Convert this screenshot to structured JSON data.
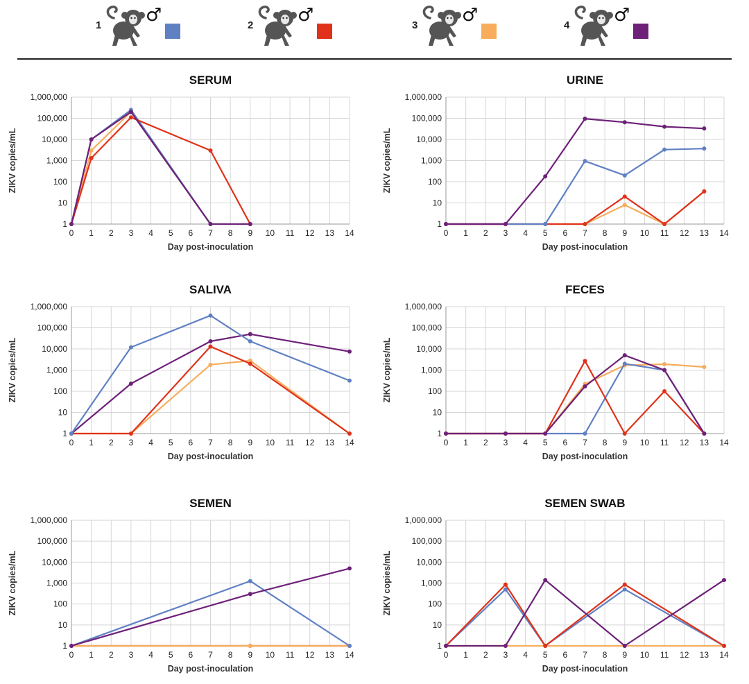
{
  "colors": {
    "subject1": "#6080C4",
    "subject2": "#E0321A",
    "subject3": "#F7AD5C",
    "subject4": "#6E2179",
    "grid": "#d6d6d6",
    "monkey": "#555555"
  },
  "legend": [
    {
      "number": "1",
      "sex_symbol": "♂",
      "color": "#6080C4",
      "icon": "monkey-icon"
    },
    {
      "number": "2",
      "sex_symbol": "♂",
      "color": "#E0321A",
      "icon": "monkey-icon"
    },
    {
      "number": "3",
      "sex_symbol": "♂",
      "color": "#F7AD5C",
      "icon": "monkey-icon"
    },
    {
      "number": "4",
      "sex_symbol": "♂",
      "color": "#6E2179",
      "icon": "monkey-icon"
    }
  ],
  "chart_data": [
    {
      "id": "serum",
      "type": "line",
      "title": "SERUM",
      "xlabel": "Day post-inoculation",
      "ylabel": "ZIKV copies/mL",
      "xlim": [
        0,
        14
      ],
      "ylim": [
        1,
        1000000
      ],
      "yscale": "log",
      "grid": true,
      "xticks": [
        "0",
        "1",
        "2",
        "3",
        "4",
        "5",
        "6",
        "7",
        "8",
        "9",
        "10",
        "11",
        "12",
        "13",
        "14"
      ],
      "yticks": [
        "1",
        "10",
        "100",
        "1,000",
        "10,000",
        "100,000",
        "1,000,000"
      ],
      "series": [
        {
          "color": "#F7AD5C",
          "points": [
            [
              0,
              1
            ],
            [
              1,
              3000
            ],
            [
              3,
              200000
            ],
            [
              7,
              1
            ]
          ]
        },
        {
          "color": "#6080C4",
          "points": [
            [
              0,
              1
            ],
            [
              1,
              10000
            ],
            [
              3,
              250000
            ],
            [
              7,
              1
            ]
          ]
        },
        {
          "color": "#E0321A",
          "points": [
            [
              0,
              1
            ],
            [
              1,
              1300
            ],
            [
              3,
              110000
            ],
            [
              7,
              3000
            ],
            [
              9,
              1
            ]
          ]
        },
        {
          "color": "#6E2179",
          "points": [
            [
              0,
              1
            ],
            [
              1,
              10000
            ],
            [
              3,
              200000
            ],
            [
              7,
              1
            ],
            [
              9,
              1
            ]
          ]
        }
      ]
    },
    {
      "id": "urine",
      "type": "line",
      "title": "URINE",
      "xlabel": "Day post-inoculation",
      "ylabel": "ZIKV copies/mL",
      "xlim": [
        0,
        14
      ],
      "ylim": [
        1,
        1000000
      ],
      "yscale": "log",
      "grid": true,
      "xticks": [
        "0",
        "1",
        "2",
        "3",
        "4",
        "5",
        "6",
        "7",
        "8",
        "9",
        "10",
        "11",
        "12",
        "13",
        "14"
      ],
      "yticks": [
        "1",
        "10",
        "100",
        "1,000",
        "10,000",
        "100,000",
        "1,000,000"
      ],
      "series": [
        {
          "color": "#F7AD5C",
          "points": [
            [
              0,
              1
            ],
            [
              3,
              1
            ],
            [
              5,
              1
            ],
            [
              7,
              1
            ],
            [
              9,
              8
            ],
            [
              11,
              1
            ],
            [
              13,
              35
            ]
          ]
        },
        {
          "color": "#E0321A",
          "points": [
            [
              0,
              1
            ],
            [
              3,
              1
            ],
            [
              5,
              1
            ],
            [
              7,
              1
            ],
            [
              9,
              20
            ],
            [
              11,
              1
            ],
            [
              13,
              35
            ]
          ]
        },
        {
          "color": "#6080C4",
          "points": [
            [
              0,
              1
            ],
            [
              3,
              1
            ],
            [
              5,
              1
            ],
            [
              7,
              950
            ],
            [
              9,
              200
            ],
            [
              11,
              3300
            ],
            [
              13,
              3700
            ]
          ]
        },
        {
          "color": "#6E2179",
          "points": [
            [
              0,
              1
            ],
            [
              3,
              1
            ],
            [
              5,
              180
            ],
            [
              7,
              95000
            ],
            [
              9,
              65000
            ],
            [
              11,
              40000
            ],
            [
              13,
              33000
            ]
          ]
        }
      ]
    },
    {
      "id": "saliva",
      "type": "line",
      "title": "SALIVA",
      "xlabel": "Day post-inoculation",
      "ylabel": "ZIKV copies/mL",
      "xlim": [
        0,
        14
      ],
      "ylim": [
        1,
        1000000
      ],
      "yscale": "log",
      "grid": true,
      "xticks": [
        "0",
        "1",
        "2",
        "3",
        "4",
        "5",
        "6",
        "7",
        "8",
        "9",
        "10",
        "11",
        "12",
        "13",
        "14"
      ],
      "yticks": [
        "1",
        "10",
        "100",
        "1,000",
        "10,000",
        "100,000",
        "1,000,000"
      ],
      "series": [
        {
          "color": "#F7AD5C",
          "points": [
            [
              0,
              1
            ],
            [
              3,
              1
            ],
            [
              7,
              1800
            ],
            [
              9,
              2800
            ],
            [
              14,
              1
            ]
          ]
        },
        {
          "color": "#E0321A",
          "points": [
            [
              0,
              1
            ],
            [
              3,
              1
            ],
            [
              7,
              13000
            ],
            [
              9,
              2000
            ],
            [
              14,
              1
            ]
          ]
        },
        {
          "color": "#6E2179",
          "points": [
            [
              0,
              1
            ],
            [
              3,
              230
            ],
            [
              7,
              23000
            ],
            [
              9,
              50000
            ],
            [
              14,
              7500
            ]
          ]
        },
        {
          "color": "#6080C4",
          "points": [
            [
              0,
              1
            ],
            [
              3,
              12000
            ],
            [
              7,
              380000
            ],
            [
              9,
              23000
            ],
            [
              14,
              320
            ]
          ]
        }
      ]
    },
    {
      "id": "feces",
      "type": "line",
      "title": "FECES",
      "xlabel": "Day post-inoculation",
      "ylabel": "ZIKV copies/mL",
      "xlim": [
        0,
        14
      ],
      "ylim": [
        1,
        1000000
      ],
      "yscale": "log",
      "grid": true,
      "xticks": [
        "0",
        "1",
        "2",
        "3",
        "4",
        "5",
        "6",
        "7",
        "8",
        "9",
        "10",
        "11",
        "12",
        "13",
        "14"
      ],
      "yticks": [
        "1",
        "10",
        "100",
        "1,000",
        "10,000",
        "100,000",
        "1,000,000"
      ],
      "series": [
        {
          "color": "#F7AD5C",
          "points": [
            [
              0,
              1
            ],
            [
              3,
              1
            ],
            [
              5,
              1
            ],
            [
              7,
              220
            ],
            [
              9,
              1700
            ],
            [
              11,
              1900
            ],
            [
              13,
              1400
            ]
          ]
        },
        {
          "color": "#6080C4",
          "points": [
            [
              0,
              1
            ],
            [
              3,
              1
            ],
            [
              5,
              1
            ],
            [
              7,
              1
            ],
            [
              9,
              2000
            ],
            [
              11,
              1000
            ],
            [
              13,
              1
            ]
          ]
        },
        {
          "color": "#E0321A",
          "points": [
            [
              0,
              1
            ],
            [
              3,
              1
            ],
            [
              5,
              1
            ],
            [
              7,
              2700
            ],
            [
              9,
              1
            ],
            [
              11,
              100
            ],
            [
              13,
              1
            ]
          ]
        },
        {
          "color": "#6E2179",
          "points": [
            [
              0,
              1
            ],
            [
              3,
              1
            ],
            [
              5,
              1
            ],
            [
              7,
              170
            ],
            [
              9,
              5000
            ],
            [
              11,
              1000
            ],
            [
              13,
              1
            ]
          ]
        }
      ]
    },
    {
      "id": "semen",
      "type": "line",
      "title": "SEMEN",
      "xlabel": "Day post-inoculation",
      "ylabel": "ZIKV copies/mL",
      "xlim": [
        0,
        14
      ],
      "ylim": [
        1,
        1000000
      ],
      "yscale": "log",
      "grid": true,
      "xticks": [
        "0",
        "1",
        "2",
        "3",
        "4",
        "5",
        "6",
        "7",
        "8",
        "9",
        "10",
        "11",
        "12",
        "13",
        "14"
      ],
      "yticks": [
        "1",
        "10",
        "100",
        "1,000",
        "10,000",
        "100,000",
        "1,000,000"
      ],
      "series": [
        {
          "color": "#E0321A",
          "points": [
            [
              0,
              1
            ],
            [
              9,
              1
            ],
            [
              14,
              1
            ]
          ]
        },
        {
          "color": "#F7AD5C",
          "points": [
            [
              0,
              1
            ],
            [
              9,
              1
            ],
            [
              14,
              1
            ]
          ]
        },
        {
          "color": "#6080C4",
          "points": [
            [
              0,
              1
            ],
            [
              9,
              1250
            ],
            [
              14,
              1
            ]
          ]
        },
        {
          "color": "#6E2179",
          "points": [
            [
              0,
              1
            ],
            [
              9,
              300
            ],
            [
              14,
              5000
            ]
          ]
        }
      ]
    },
    {
      "id": "semen-swab",
      "type": "line",
      "title": "SEMEN SWAB",
      "xlabel": "Day post-inoculation",
      "ylabel": "ZIKV copies/mL",
      "xlim": [
        0,
        14
      ],
      "ylim": [
        1,
        1000000
      ],
      "yscale": "log",
      "grid": true,
      "xticks": [
        "0",
        "1",
        "2",
        "3",
        "4",
        "5",
        "6",
        "7",
        "8",
        "9",
        "10",
        "11",
        "12",
        "13",
        "14"
      ],
      "yticks": [
        "1",
        "10",
        "100",
        "1,000",
        "10,000",
        "100,000",
        "1,000,000"
      ],
      "series": [
        {
          "color": "#F7AD5C",
          "points": [
            [
              0,
              1
            ],
            [
              3,
              1
            ],
            [
              5,
              1
            ],
            [
              9,
              1
            ],
            [
              14,
              1
            ]
          ]
        },
        {
          "color": "#6080C4",
          "points": [
            [
              0,
              1
            ],
            [
              3,
              500
            ],
            [
              5,
              1
            ],
            [
              9,
              500
            ],
            [
              14,
              1
            ]
          ]
        },
        {
          "color": "#E0321A",
          "points": [
            [
              0,
              1
            ],
            [
              3,
              850
            ],
            [
              5,
              1
            ],
            [
              9,
              850
            ],
            [
              14,
              1
            ]
          ]
        },
        {
          "color": "#6E2179",
          "points": [
            [
              0,
              1
            ],
            [
              3,
              1
            ],
            [
              5,
              1400
            ],
            [
              9,
              1
            ],
            [
              14,
              1400
            ]
          ]
        }
      ]
    }
  ]
}
